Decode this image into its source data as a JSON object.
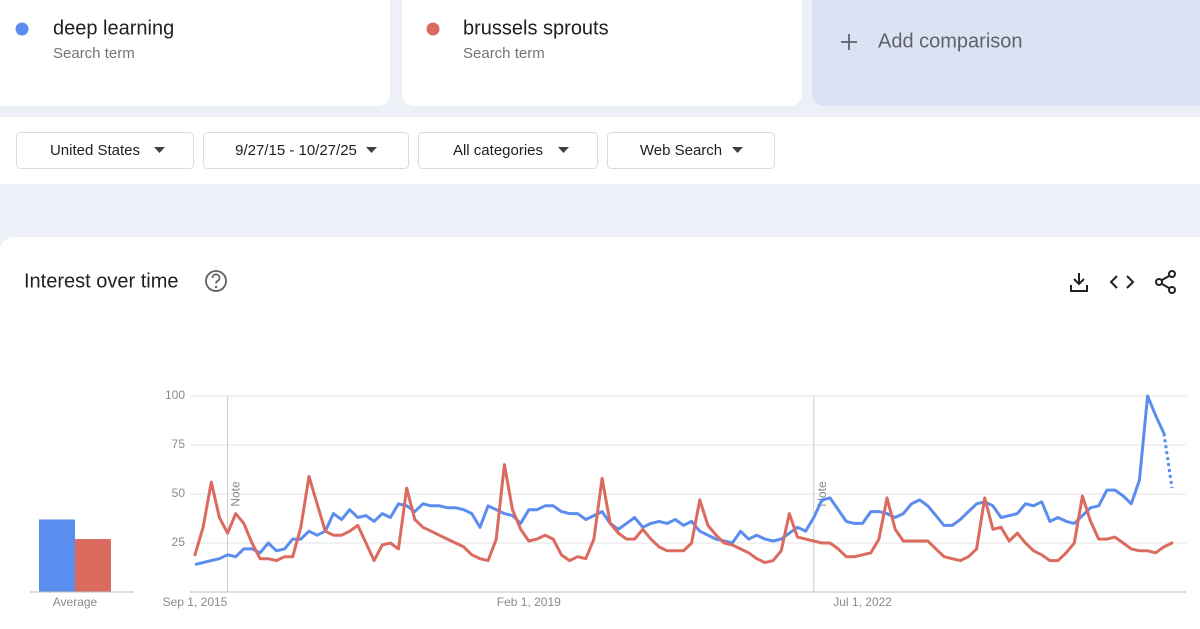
{
  "cards": [
    {
      "subtitle": "Search term"
    },
    {
      "subtitle": "Search term"
    }
  ],
  "add_comparison": "Add comparison",
  "filters": [
    "United States",
    "9/27/15 - 10/27/25",
    "All categories",
    "Web Search"
  ],
  "panel_title": "Interest over time",
  "chart_data": [
    {
      "type": "line",
      "categories": [
        "Sep 1, 2015",
        null,
        null,
        null,
        null,
        null,
        null,
        null,
        null,
        null,
        null,
        null,
        null,
        null,
        null,
        null,
        null,
        null,
        null,
        null,
        null,
        null,
        null,
        null,
        null,
        null,
        null,
        null,
        null,
        null,
        null,
        null,
        null,
        null,
        null,
        null,
        null,
        null,
        null,
        null,
        null,
        "Feb 1, 2019",
        null,
        null,
        null,
        null,
        null,
        null,
        null,
        null,
        null,
        null,
        null,
        null,
        null,
        null,
        null,
        null,
        null,
        null,
        null,
        null,
        null,
        null,
        null,
        null,
        null,
        null,
        null,
        null,
        null,
        null,
        null,
        null,
        null,
        null,
        null,
        null,
        null,
        null,
        null,
        null,
        "Jul 1, 2022",
        null,
        null,
        null,
        null,
        null,
        null,
        null,
        null,
        null,
        null,
        null,
        null,
        null,
        null,
        null,
        null,
        null,
        null,
        null,
        null,
        null,
        null,
        null,
        null,
        null,
        null,
        null,
        null,
        null,
        null,
        null,
        null,
        null,
        null,
        null,
        null,
        null,
        null
      ],
      "series": [
        {
          "name": "deep learning",
          "color": "#5b8def",
          "partial_last": true,
          "values": [
            14,
            15,
            16,
            17,
            19,
            18,
            22,
            22,
            20,
            25,
            21,
            22,
            27,
            27,
            31,
            29,
            31,
            40,
            37,
            42,
            38,
            39,
            36,
            40,
            38,
            45,
            44,
            41,
            45,
            44,
            44,
            43,
            43,
            42,
            40,
            33,
            44,
            42,
            40,
            39,
            35,
            42,
            42,
            44,
            44,
            41,
            40,
            40,
            37,
            39,
            41,
            35,
            32,
            35,
            38,
            33,
            35,
            36,
            35,
            37,
            34,
            36,
            31,
            29,
            27,
            26,
            25,
            31,
            27,
            29,
            27,
            26,
            27,
            30,
            33,
            31,
            38,
            47,
            48,
            42,
            36,
            35,
            35,
            41,
            41,
            40,
            38,
            40,
            45,
            47,
            44,
            39,
            34,
            34,
            37,
            41,
            45,
            46,
            44,
            38,
            39,
            40,
            45,
            44,
            46,
            36,
            38,
            36,
            35,
            39,
            43,
            44,
            52,
            52,
            49,
            45,
            57,
            100,
            90,
            81,
            53
          ]
        },
        {
          "name": "brussels sprouts",
          "color": "#db6b5f",
          "values": [
            19,
            33,
            56,
            38,
            30,
            40,
            35,
            25,
            17,
            17,
            16,
            18,
            18,
            33,
            59,
            45,
            31,
            29,
            29,
            31,
            34,
            25,
            16,
            24,
            25,
            22,
            53,
            37,
            33,
            31,
            29,
            27,
            25,
            23,
            19,
            17,
            16,
            27,
            65,
            42,
            32,
            26,
            27,
            29,
            27,
            19,
            16,
            18,
            17,
            27,
            58,
            35,
            30,
            27,
            27,
            32,
            27,
            23,
            21,
            21,
            21,
            25,
            47,
            34,
            29,
            25,
            24,
            22,
            20,
            17,
            15,
            16,
            21,
            40,
            28,
            27,
            26,
            25,
            25,
            22,
            18,
            18,
            19,
            20,
            27,
            48,
            32,
            26,
            26,
            26,
            26,
            22,
            18,
            17,
            16,
            18,
            22,
            48,
            32,
            33,
            26,
            30,
            25,
            21,
            19,
            16,
            16,
            20,
            25,
            49,
            36,
            27,
            27,
            28,
            25,
            22,
            21,
            21,
            20,
            23,
            25
          ]
        }
      ],
      "annotations": [
        {
          "text": "Note",
          "index": 4
        },
        {
          "text": "Note",
          "index": 76
        }
      ],
      "ylim": [
        0,
        100
      ],
      "yticks": [
        25,
        50,
        75,
        100
      ],
      "grid": true
    },
    {
      "type": "bar",
      "categories": [
        "Average"
      ],
      "series": [
        {
          "color": "#5b8def",
          "values": [
            37
          ]
        },
        {
          "color": "#db6b5f",
          "values": [
            27
          ]
        }
      ],
      "ylim": [
        0,
        100
      ]
    }
  ]
}
